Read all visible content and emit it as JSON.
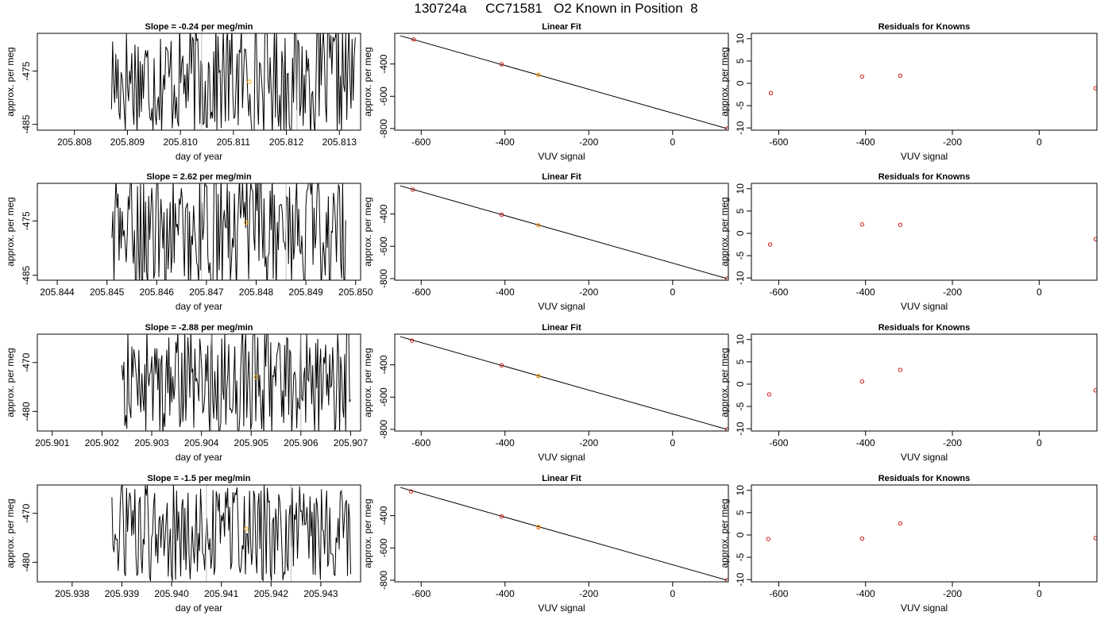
{
  "title": "130724a     CC71581   O2 Known in Position  8",
  "colors": {
    "line": "#000000",
    "known_points": "#cc0000",
    "sample_point": "#ffa500",
    "marker_lines": "#bebebe"
  },
  "chart_data": [
    {
      "row": 1,
      "col": 1,
      "type": "line",
      "title": "Slope =  -0.24  per meg/min",
      "xlabel": "day of year",
      "ylabel": "approx. per meg",
      "xlim": [
        205.8073,
        205.8134
      ],
      "ylim": [
        -486.1,
        -467.9
      ],
      "xticks": [
        205.808,
        205.809,
        205.81,
        205.811,
        205.812,
        205.813
      ],
      "xtick_labels": [
        "205.808",
        "205.809",
        "205.810",
        "205.811",
        "205.812",
        "205.813"
      ],
      "yticks": [
        -475,
        -485
      ],
      "ytick_labels": [
        "-475",
        "-485"
      ],
      "x_start": 205.8087,
      "x_end": 205.8133,
      "mean": -476.5,
      "amplitude": 11,
      "sample_point": [
        205.8113,
        -477.0
      ],
      "marker_lines": [
        205.8104,
        205.8122
      ]
    },
    {
      "row": 1,
      "col": 2,
      "type": "scatter",
      "title": "Linear Fit",
      "xlabel": "VUV signal",
      "ylabel": "approx. per meg",
      "xlim": [
        -663,
        133
      ],
      "ylim": [
        -810,
        -210
      ],
      "xticks": [
        -600,
        -400,
        -200,
        0
      ],
      "xtick_labels": [
        "-600",
        "-400",
        "-200",
        "0"
      ],
      "yticks": [
        -400,
        -600,
        -800
      ],
      "ytick_labels": [
        "-400",
        "-600",
        "-800"
      ],
      "line": [
        [
          -650,
          -225
        ],
        [
          130,
          -800
        ]
      ],
      "points": [
        [
          -618,
          -248
        ],
        [
          -408,
          -402
        ],
        [
          -320,
          -467
        ],
        [
          130,
          -800
        ]
      ],
      "sample_point": [
        -320,
        -467
      ]
    },
    {
      "row": 1,
      "col": 3,
      "type": "scatter",
      "title": "Residuals for Knowns",
      "xlabel": "VUV signal",
      "ylabel": "approx. per meg",
      "xlim": [
        -663,
        133
      ],
      "ylim": [
        -10.5,
        11.2
      ],
      "xticks": [
        -600,
        -400,
        -200,
        0
      ],
      "xtick_labels": [
        "-600",
        "-400",
        "-200",
        "0"
      ],
      "yticks": [
        10,
        5,
        0,
        -5,
        -10
      ],
      "ytick_labels": [
        "10",
        "5",
        "0",
        "-5",
        "-10"
      ],
      "points": [
        [
          -618,
          -2.2
        ],
        [
          -408,
          1.5
        ],
        [
          -320,
          1.7
        ],
        [
          130,
          -1.1
        ]
      ]
    },
    {
      "row": 2,
      "col": 1,
      "type": "line",
      "title": "Slope =  2.62  per meg/min",
      "xlabel": "day of year",
      "ylabel": "approx. per meg",
      "xlim": [
        205.8436,
        205.8501
      ],
      "ylim": [
        -485.9,
        -468.1
      ],
      "xticks": [
        205.844,
        205.845,
        205.846,
        205.847,
        205.848,
        205.849,
        205.85
      ],
      "xtick_labels": [
        "205.844",
        "205.845",
        "205.846",
        "205.847",
        "205.848",
        "205.849",
        "205.850"
      ],
      "yticks": [
        -475,
        -485
      ],
      "ytick_labels": [
        "-475",
        "-485"
      ],
      "x_start": 205.8451,
      "x_end": 205.8498,
      "mean": -477.0,
      "amplitude": 11,
      "sample_point": [
        205.8478,
        -475.3
      ],
      "marker_lines": [
        205.8469,
        205.8486
      ]
    },
    {
      "row": 2,
      "col": 2,
      "type": "scatter",
      "title": "Linear Fit",
      "xlabel": "VUV signal",
      "ylabel": "approx. per meg",
      "xlim": [
        -663,
        133
      ],
      "ylim": [
        -810,
        -210
      ],
      "xticks": [
        -600,
        -400,
        -200,
        0
      ],
      "xtick_labels": [
        "-600",
        "-400",
        "-200",
        "0"
      ],
      "yticks": [
        -400,
        -600,
        -800
      ],
      "ytick_labels": [
        "-400",
        "-600",
        "-800"
      ],
      "line": [
        [
          -650,
          -225
        ],
        [
          130,
          -800
        ]
      ],
      "points": [
        [
          -620,
          -249
        ],
        [
          -408,
          -404
        ],
        [
          -320,
          -470
        ],
        [
          130,
          -800
        ]
      ],
      "sample_point": [
        -320,
        -470
      ]
    },
    {
      "row": 2,
      "col": 3,
      "type": "scatter",
      "title": "Residuals for Knowns",
      "xlabel": "VUV signal",
      "ylabel": "approx. per meg",
      "xlim": [
        -663,
        133
      ],
      "ylim": [
        -10.5,
        11.2
      ],
      "xticks": [
        -600,
        -400,
        -200,
        0
      ],
      "xtick_labels": [
        "-600",
        "-400",
        "-200",
        "0"
      ],
      "yticks": [
        10,
        5,
        0,
        -5,
        -10
      ],
      "ytick_labels": [
        "10",
        "5",
        "0",
        "-5",
        "-10"
      ],
      "points": [
        [
          -620,
          -2.5
        ],
        [
          -408,
          2.0
        ],
        [
          -320,
          1.9
        ],
        [
          130,
          -1.3
        ]
      ]
    },
    {
      "row": 3,
      "col": 1,
      "type": "line",
      "title": "Slope =  -2.88  per meg/min",
      "xlabel": "day of year",
      "ylabel": "approx. per meg",
      "xlim": [
        205.9007,
        205.9072
      ],
      "ylim": [
        -484.0,
        -464.2
      ],
      "xticks": [
        205.901,
        205.902,
        205.903,
        205.904,
        205.905,
        205.906,
        205.907
      ],
      "xtick_labels": [
        "205.901",
        "205.902",
        "205.903",
        "205.904",
        "205.905",
        "205.906",
        "205.907"
      ],
      "yticks": [
        -470,
        -480
      ],
      "ytick_labels": [
        "-470",
        "-480"
      ],
      "x_start": 205.9024,
      "x_end": 205.907,
      "mean": -474.0,
      "amplitude": 11,
      "sample_point": [
        205.9051,
        -473.0
      ],
      "marker_lines": [
        205.9042,
        205.906
      ]
    },
    {
      "row": 3,
      "col": 2,
      "type": "scatter",
      "title": "Linear Fit",
      "xlabel": "VUV signal",
      "ylabel": "approx. per meg",
      "xlim": [
        -663,
        133
      ],
      "ylim": [
        -810,
        -210
      ],
      "xticks": [
        -600,
        -400,
        -200,
        0
      ],
      "xtick_labels": [
        "-600",
        "-400",
        "-200",
        "0"
      ],
      "yticks": [
        -400,
        -600,
        -800
      ],
      "ytick_labels": [
        "-400",
        "-600",
        "-800"
      ],
      "line": [
        [
          -650,
          -225
        ],
        [
          130,
          -800
        ]
      ],
      "points": [
        [
          -622,
          -250
        ],
        [
          -408,
          -403
        ],
        [
          -320,
          -469
        ],
        [
          130,
          -800
        ]
      ],
      "sample_point": [
        -320,
        -469
      ]
    },
    {
      "row": 3,
      "col": 3,
      "type": "scatter",
      "title": "Residuals for Knowns",
      "xlabel": "VUV signal",
      "ylabel": "approx. per meg",
      "xlim": [
        -663,
        133
      ],
      "ylim": [
        -10.5,
        11.2
      ],
      "xticks": [
        -600,
        -400,
        -200,
        0
      ],
      "xtick_labels": [
        "-600",
        "-400",
        "-200",
        "0"
      ],
      "yticks": [
        10,
        5,
        0,
        -5,
        -10
      ],
      "ytick_labels": [
        "10",
        "5",
        "0",
        "-5",
        "-10"
      ],
      "points": [
        [
          -622,
          -2.3
        ],
        [
          -408,
          0.6
        ],
        [
          -320,
          3.2
        ],
        [
          130,
          -1.4
        ]
      ]
    },
    {
      "row": 4,
      "col": 1,
      "type": "line",
      "title": "Slope =  -1.5  per meg/min",
      "xlabel": "day of year",
      "ylabel": "approx. per meg",
      "xlim": [
        205.9373,
        205.9438
      ],
      "ylim": [
        -484.0,
        -464.2
      ],
      "xticks": [
        205.938,
        205.939,
        205.94,
        205.941,
        205.942,
        205.943
      ],
      "xtick_labels": [
        "205.938",
        "205.939",
        "205.940",
        "205.941",
        "205.942",
        "205.943"
      ],
      "yticks": [
        -470,
        -480
      ],
      "ytick_labels": [
        "-470",
        "-480"
      ],
      "x_start": 205.9388,
      "x_end": 205.9436,
      "mean": -474.0,
      "amplitude": 10,
      "sample_point": [
        205.9415,
        -473.2
      ],
      "marker_lines": [
        205.9407,
        205.9424
      ]
    },
    {
      "row": 4,
      "col": 2,
      "type": "scatter",
      "title": "Linear Fit",
      "xlabel": "VUV signal",
      "ylabel": "approx. per meg",
      "xlim": [
        -663,
        133
      ],
      "ylim": [
        -810,
        -210
      ],
      "xticks": [
        -600,
        -400,
        -200,
        0
      ],
      "xtick_labels": [
        "-600",
        "-400",
        "-200",
        "0"
      ],
      "yticks": [
        -400,
        -600,
        -800
      ],
      "ytick_labels": [
        "-400",
        "-600",
        "-800"
      ],
      "line": [
        [
          -650,
          -225
        ],
        [
          130,
          -800
        ]
      ],
      "points": [
        [
          -624,
          -250
        ],
        [
          -408,
          -405
        ],
        [
          -320,
          -472
        ],
        [
          130,
          -800
        ]
      ],
      "sample_point": [
        -320,
        -469
      ]
    },
    {
      "row": 4,
      "col": 3,
      "type": "scatter",
      "title": "Residuals for Knowns",
      "xlabel": "VUV signal",
      "ylabel": "approx. per meg",
      "xlim": [
        -663,
        133
      ],
      "ylim": [
        -10.5,
        11.2
      ],
      "xticks": [
        -600,
        -400,
        -200,
        0
      ],
      "xtick_labels": [
        "-600",
        "-400",
        "-200",
        "0"
      ],
      "yticks": [
        10,
        5,
        0,
        -5,
        -10
      ],
      "ytick_labels": [
        "10",
        "5",
        "0",
        "-5",
        "-10"
      ],
      "points": [
        [
          -624,
          -0.9
        ],
        [
          -408,
          -0.8
        ],
        [
          -320,
          2.6
        ],
        [
          130,
          -0.7
        ]
      ]
    }
  ]
}
